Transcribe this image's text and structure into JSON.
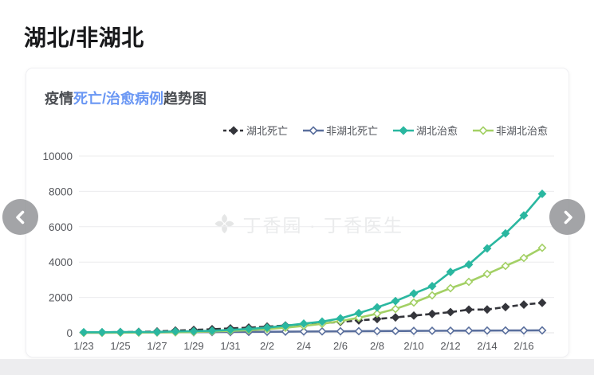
{
  "page": {
    "title": "湖北/非湖北"
  },
  "card": {
    "title_parts": {
      "prefix": "疫情",
      "highlight": "死亡/治愈病例",
      "suffix": "趋势图"
    },
    "highlight_color": "#6a97f4",
    "watermark_text": "丁香园 · 丁香医生"
  },
  "carousel": {
    "left_arrow": "previous",
    "right_arrow": "next"
  },
  "chart_data": {
    "type": "line",
    "title": "疫情死亡/治愈病例趋势图",
    "x": [
      "1/23",
      "1/24",
      "1/25",
      "1/26",
      "1/27",
      "1/28",
      "1/29",
      "1/30",
      "1/31",
      "2/1",
      "2/2",
      "2/3",
      "2/4",
      "2/5",
      "2/6",
      "2/7",
      "2/8",
      "2/9",
      "2/10",
      "2/11",
      "2/12",
      "2/13",
      "2/14",
      "2/15",
      "2/16",
      "2/17"
    ],
    "x_tick_labels_shown": [
      "1/23",
      "1/25",
      "1/27",
      "1/29",
      "1/31",
      "2/2",
      "2/4",
      "2/6",
      "2/8",
      "2/10",
      "2/12",
      "2/14",
      "2/16"
    ],
    "ylim": [
      0,
      10000
    ],
    "y_ticks": [
      0,
      2000,
      4000,
      6000,
      8000,
      10000
    ],
    "grid": "horizontal",
    "legend_position": "top-right",
    "series": [
      {
        "name": "湖北死亡",
        "color": "#34353b",
        "marker": "diamond-filled",
        "line_style": "dashed",
        "values": [
          17,
          24,
          40,
          52,
          76,
          125,
          162,
          204,
          249,
          294,
          350,
          414,
          479,
          549,
          618,
          699,
          780,
          871,
          974,
          1068,
          1171,
          1310,
          1318,
          1457,
          1596,
          1696
        ]
      },
      {
        "name": "非湖北死亡",
        "color": "#5a6f9d",
        "marker": "diamond-hollow",
        "line_style": "solid",
        "values": [
          8,
          9,
          14,
          17,
          24,
          29,
          37,
          42,
          46,
          53,
          60,
          67,
          73,
          79,
          85,
          92,
          97,
          103,
          108,
          113,
          118,
          122,
          126,
          130,
          133,
          136
        ]
      },
      {
        "name": "湖北治愈",
        "color": "#2ab7a0",
        "marker": "diamond-filled",
        "line_style": "solid",
        "values": [
          31,
          32,
          42,
          45,
          47,
          80,
          90,
          116,
          166,
          215,
          295,
          396,
          520,
          633,
          817,
          1115,
          1439,
          1795,
          2222,
          2639,
          3441,
          3862,
          4774,
          5623,
          6639,
          7862
        ]
      },
      {
        "name": "非湖北治愈",
        "color": "#a3d065",
        "marker": "diamond-hollow",
        "line_style": "solid",
        "values": [
          3,
          4,
          8,
          15,
          23,
          31,
          50,
          75,
          107,
          150,
          209,
          288,
          390,
          509,
          658,
          853,
          1082,
          1351,
          1712,
          2117,
          2523,
          2883,
          3333,
          3784,
          4234,
          4810
        ]
      }
    ],
    "axis_text_color": "#55575c",
    "grid_color": "#ececee"
  }
}
